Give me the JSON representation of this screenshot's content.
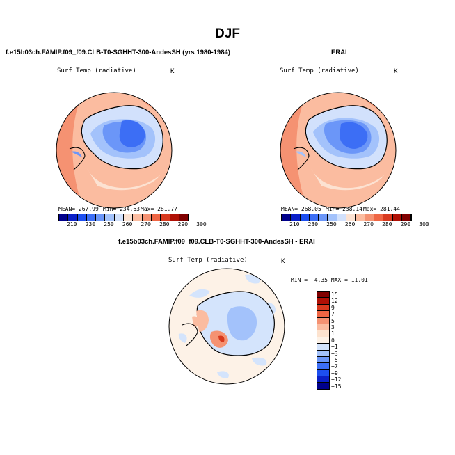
{
  "title": "DJF",
  "panels": [
    {
      "title": "f.e15b03ch.FAMIP.f09_f09.CLB-T0-SGHHT-300-AndesSH (yrs 1980-1984)",
      "variable": "Surf Temp (radiative)",
      "units": "K",
      "stats": {
        "mean": "MEAN= 267.99",
        "min": "Min= 234.63",
        "max": "Max= 281.77"
      }
    },
    {
      "title": "ERAI",
      "variable": "Surf Temp (radiative)",
      "units": "K",
      "stats": {
        "mean": "MEAN= 268.05",
        "min": "Min= 238.14",
        "max": "Max= 281.44"
      }
    },
    {
      "title": "f.e15b03ch.FAMIP.f09_f09.CLB-T0-SGHHT-300-AndesSH - ERAI",
      "variable": "Surf Temp (radiative)",
      "units": "K",
      "stats": {
        "minmax": "MIN =  −4.35 MAX =  11.01"
      }
    }
  ],
  "colorbar_abs": {
    "labels": [
      "210",
      "230",
      "250",
      "260",
      "270",
      "280",
      "290",
      "300"
    ],
    "colors": [
      "#00008b",
      "#0b20c8",
      "#1d4ff0",
      "#3c6ef5",
      "#6b96f8",
      "#a3c2fb",
      "#d2e1fc",
      "#fce2d2",
      "#fbbca0",
      "#f59272",
      "#ef6644",
      "#d8391e",
      "#b01005",
      "#800000"
    ]
  },
  "colorbar_diff": {
    "labels": [
      "15",
      "12",
      "9",
      "7",
      "5",
      "3",
      "1",
      "0",
      "−1",
      "−3",
      "−5",
      "−7",
      "−9",
      "−12",
      "−15"
    ],
    "colors": [
      "#800000",
      "#b01005",
      "#d8391e",
      "#ef6644",
      "#f59272",
      "#fbbca0",
      "#fde3cf",
      "#fdf2e7",
      "#d4e4fc",
      "#a3c2fb",
      "#6b96f8",
      "#3c6ef5",
      "#1d4ff0",
      "#0b20c8",
      "#00008b"
    ]
  },
  "chart_data": [
    {
      "type": "heatmap",
      "projection": "south polar stereographic",
      "title": "f.e15b03ch.FAMIP.f09_f09.CLB-T0-SGHHT-300-AndesSH (yrs 1980-1984)",
      "field": "Surf Temp (radiative)",
      "units": "K",
      "mean": 267.99,
      "min": 234.63,
      "max": 281.77,
      "contour_levels": [
        210,
        230,
        250,
        260,
        270,
        280,
        290,
        300
      ]
    },
    {
      "type": "heatmap",
      "projection": "south polar stereographic",
      "title": "ERAI",
      "field": "Surf Temp (radiative)",
      "units": "K",
      "mean": 268.05,
      "min": 238.14,
      "max": 281.44,
      "contour_levels": [
        210,
        230,
        250,
        260,
        270,
        280,
        290,
        300
      ]
    },
    {
      "type": "heatmap",
      "projection": "south polar stereographic",
      "title": "f.e15b03ch.FAMIP.f09_f09.CLB-T0-SGHHT-300-AndesSH - ERAI",
      "field": "Surf Temp (radiative)",
      "units": "K",
      "min": -4.35,
      "max": 11.01,
      "contour_levels": [
        -15,
        -12,
        -9,
        -7,
        -5,
        -3,
        -1,
        0,
        1,
        3,
        5,
        7,
        9,
        12,
        15
      ]
    }
  ]
}
